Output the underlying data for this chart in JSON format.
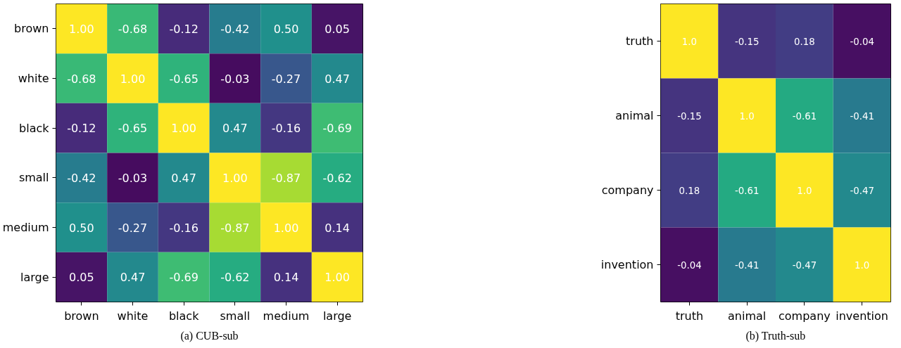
{
  "chart_data": [
    {
      "type": "heatmap",
      "title": "(a) CUB-sub",
      "categories": [
        "brown",
        "white",
        "black",
        "small",
        "medium",
        "large"
      ],
      "y_categories": [
        "brown",
        "white",
        "black",
        "small",
        "medium",
        "large"
      ],
      "cells": [
        [
          1.0,
          -0.68,
          -0.12,
          -0.42,
          0.5,
          0.05
        ],
        [
          -0.68,
          1.0,
          -0.65,
          -0.03,
          -0.27,
          0.47
        ],
        [
          -0.12,
          -0.65,
          1.0,
          0.47,
          -0.16,
          -0.69
        ],
        [
          -0.42,
          -0.03,
          0.47,
          1.0,
          -0.87,
          -0.62
        ],
        [
          0.5,
          -0.27,
          -0.16,
          -0.87,
          1.0,
          0.14
        ],
        [
          0.05,
          0.47,
          -0.69,
          -0.62,
          0.14,
          1.0
        ]
      ],
      "cell_labels": [
        [
          "1.00",
          "-0.68",
          "-0.12",
          "-0.42",
          "0.50",
          "0.05"
        ],
        [
          "-0.68",
          "1.00",
          "-0.65",
          "-0.03",
          "-0.27",
          "0.47"
        ],
        [
          "-0.12",
          "-0.65",
          "1.00",
          "0.47",
          "-0.16",
          "-0.69"
        ],
        [
          "-0.42",
          "-0.03",
          "0.47",
          "1.00",
          "-0.87",
          "-0.62"
        ],
        [
          "0.50",
          "-0.27",
          "-0.16",
          "-0.87",
          "1.00",
          "0.14"
        ],
        [
          "0.05",
          "0.47",
          "-0.69",
          "-0.62",
          "0.14",
          "1.00"
        ]
      ],
      "grid": false
    },
    {
      "type": "heatmap",
      "title": "(b) Truth-sub",
      "categories": [
        "truth",
        "animal",
        "company",
        "invention"
      ],
      "y_categories": [
        "truth",
        "animal",
        "company",
        "invention"
      ],
      "cells": [
        [
          1.0,
          -0.15,
          0.18,
          -0.04
        ],
        [
          -0.15,
          1.0,
          -0.61,
          -0.41
        ],
        [
          0.18,
          -0.61,
          1.0,
          -0.47
        ],
        [
          -0.04,
          -0.41,
          -0.47,
          1.0
        ]
      ],
      "cell_labels": [
        [
          "1.0",
          "-0.15",
          "0.18",
          "-0.04"
        ],
        [
          "-0.15",
          "1.0",
          "-0.61",
          "-0.41"
        ],
        [
          "0.18",
          "-0.61",
          "1.0",
          "-0.47"
        ],
        [
          "-0.04",
          "-0.41",
          "-0.47",
          "1.0"
        ]
      ],
      "grid": false
    }
  ]
}
